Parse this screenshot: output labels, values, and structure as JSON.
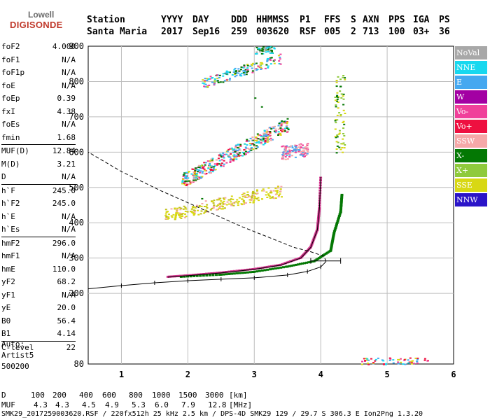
{
  "logo": {
    "line1": "Lowell",
    "line2": "DIGISONDE"
  },
  "header": {
    "row1": [
      "Station",
      "YYYY",
      "DAY",
      "DDD",
      "HHMMSS",
      "P1",
      "FFS",
      "S",
      "AXN",
      "PPS",
      "IGA",
      "PS"
    ],
    "row2": [
      "Santa Maria",
      "2017",
      "Sep16",
      "259",
      "003620",
      "RSF",
      "005",
      "2",
      "713",
      "100",
      "03+",
      "36"
    ]
  },
  "params": [
    {
      "name": "foF2",
      "value": "4.000"
    },
    {
      "name": "foF1",
      "value": "N/A"
    },
    {
      "name": "foF1p",
      "value": "N/A"
    },
    {
      "name": "foE",
      "value": "N/A"
    },
    {
      "name": "foEp",
      "value": "0.39"
    },
    {
      "name": "fxI",
      "value": "4.38"
    },
    {
      "name": "foEs",
      "value": "N/A"
    },
    {
      "name": "fmin",
      "value": "1.68"
    },
    {
      "name": "MUF(D)",
      "value": "12.84"
    },
    {
      "name": "M(D)",
      "value": "3.21"
    },
    {
      "name": "D",
      "value": "N/A"
    },
    {
      "name": "h`F",
      "value": "245.0"
    },
    {
      "name": "h`F2",
      "value": "245.0"
    },
    {
      "name": "h`E",
      "value": "N/A"
    },
    {
      "name": "h`Es",
      "value": "N/A"
    },
    {
      "name": "hmF2",
      "value": "296.0"
    },
    {
      "name": "hmF1",
      "value": "N/A"
    },
    {
      "name": "hmE",
      "value": "110.0"
    },
    {
      "name": "yF2",
      "value": "68.2"
    },
    {
      "name": "yF1",
      "value": "N/A"
    },
    {
      "name": "yE",
      "value": "20.0"
    },
    {
      "name": "B0",
      "value": "56.4"
    },
    {
      "name": "B1",
      "value": "4.14"
    },
    {
      "name": "C-level",
      "value": "22"
    }
  ],
  "auto": {
    "line1": "Auto:",
    "line2": "Artist5",
    "line3": "500200"
  },
  "legend": [
    {
      "label": "NoVal",
      "color": "#a8a8a8"
    },
    {
      "label": "NNE",
      "color": "#18d8ef"
    },
    {
      "label": "E",
      "color": "#45a8f0"
    },
    {
      "label": "W",
      "color": "#a300a3"
    },
    {
      "label": "Vo-",
      "color": "#f0409a"
    },
    {
      "label": "Vo+",
      "color": "#ee1040"
    },
    {
      "label": "SSW",
      "color": "#f6a8a8"
    },
    {
      "label": "X-",
      "color": "#047804"
    },
    {
      "label": "X+",
      "color": "#8fca3c"
    },
    {
      "label": "SSE",
      "color": "#d8d814"
    },
    {
      "label": "NNW",
      "color": "#2a14c8"
    }
  ],
  "chart_data": {
    "type": "scatter",
    "xlim": [
      0.5,
      6.0
    ],
    "ylim": [
      80,
      900
    ],
    "x_ticks": [
      "1",
      "2",
      "3",
      "4",
      "5",
      "6"
    ],
    "y_ticks": [
      "80",
      "200",
      "300",
      "400",
      "500",
      "600",
      "700",
      "800",
      "900"
    ],
    "grid": true,
    "profile": [
      [
        0.5,
        213
      ],
      [
        1.0,
        222
      ],
      [
        1.5,
        230
      ],
      [
        2.0,
        236
      ],
      [
        2.5,
        240
      ],
      [
        3.0,
        244
      ],
      [
        3.5,
        252
      ],
      [
        3.8,
        262
      ],
      [
        4.0,
        275
      ],
      [
        4.08,
        290
      ],
      [
        4.05,
        305
      ],
      [
        3.85,
        318
      ],
      [
        3.6,
        330
      ],
      [
        3.2,
        360
      ],
      [
        2.8,
        390
      ],
      [
        2.2,
        440
      ],
      [
        1.6,
        490
      ],
      [
        1.0,
        545
      ],
      [
        0.5,
        600
      ]
    ],
    "o_trace": [
      [
        1.7,
        246
      ],
      [
        2.0,
        250
      ],
      [
        2.5,
        258
      ],
      [
        3.0,
        268
      ],
      [
        3.4,
        280
      ],
      [
        3.7,
        300
      ],
      [
        3.85,
        330
      ],
      [
        3.95,
        380
      ],
      [
        3.98,
        440
      ],
      [
        4.0,
        530
      ]
    ],
    "x_trace": [
      [
        1.9,
        246
      ],
      [
        2.5,
        252
      ],
      [
        3.0,
        260
      ],
      [
        3.5,
        275
      ],
      [
        3.9,
        290
      ],
      [
        4.15,
        320
      ],
      [
        4.2,
        370
      ],
      [
        4.3,
        430
      ],
      [
        4.32,
        480
      ]
    ],
    "bottom_table": {
      "D_label": "D",
      "D_values": [
        "100",
        "200",
        "400",
        "600",
        "800",
        "1000",
        "1500",
        "3000"
      ],
      "D_unit": "[km]",
      "MUF_label": "MUF",
      "MUF_values": [
        "4.3",
        "4.3",
        "4.5",
        "4.9",
        "5.3",
        "6.0",
        "7.9",
        "12.8"
      ],
      "MUF_unit": "[MHz]"
    }
  },
  "footer": "SMK29_2017259003620.RSF / 220fx512h 25 kHz 2.5 km / DPS-4D SMK29 129 / 29.7 S 306.3 E Ion2Png 1.3.20"
}
